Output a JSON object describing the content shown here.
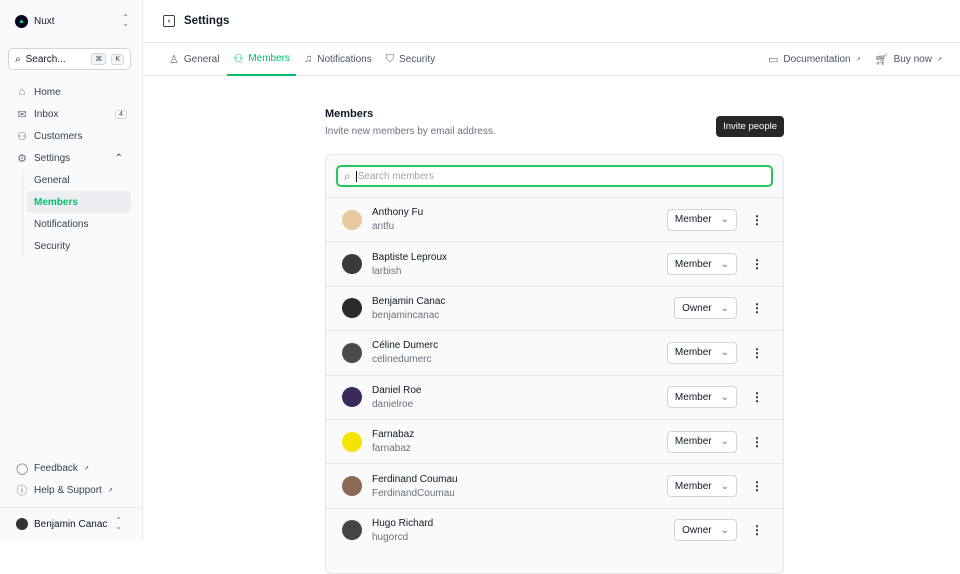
{
  "team": {
    "name": "Nuxt"
  },
  "search": {
    "placeholder": "Search...",
    "kbd1": "⌘",
    "kbd2": "K"
  },
  "nav": [
    {
      "label": "Home",
      "icon": "home-icon",
      "glyph": "⌂"
    },
    {
      "label": "Inbox",
      "icon": "inbox-icon",
      "glyph": "✉",
      "badge": "4"
    },
    {
      "label": "Customers",
      "icon": "users-icon",
      "glyph": "⚇"
    },
    {
      "label": "Settings",
      "icon": "gear-icon",
      "glyph": "⚙"
    }
  ],
  "settings_sub": [
    "General",
    "Members",
    "Notifications",
    "Security"
  ],
  "footer": {
    "feedback": "Feedback",
    "help": "Help & Support",
    "user": "Benjamin Canac"
  },
  "header": {
    "title": "Settings"
  },
  "tabs": [
    {
      "label": "General",
      "glyph": "♙"
    },
    {
      "label": "Members",
      "glyph": "⚇"
    },
    {
      "label": "Notifications",
      "glyph": "🔔"
    },
    {
      "label": "Security",
      "glyph": "⛉"
    }
  ],
  "links": {
    "docs": "Documentation",
    "buy": "Buy now"
  },
  "members_section": {
    "title": "Members",
    "description": "Invite new members by email address.",
    "invite": "Invite people",
    "search_placeholder": "Search members"
  },
  "members": [
    {
      "name": "Anthony Fu",
      "username": "antfu",
      "role": "Member",
      "color": "#e8c9a0"
    },
    {
      "name": "Baptiste Leproux",
      "username": "larbish",
      "role": "Member",
      "color": "#3a3a3a"
    },
    {
      "name": "Benjamin Canac",
      "username": "benjamincanac",
      "role": "Owner",
      "color": "#2a2a2a"
    },
    {
      "name": "Céline Dumerc",
      "username": "celinedumerc",
      "role": "Member",
      "color": "#4a4a4a"
    },
    {
      "name": "Daniel Roe",
      "username": "danielroe",
      "role": "Member",
      "color": "#3b2a5a"
    },
    {
      "name": "Farnabaz",
      "username": "farnabaz",
      "role": "Member",
      "color": "#f5e400"
    },
    {
      "name": "Ferdinand Coumau",
      "username": "FerdinandCoumau",
      "role": "Member",
      "color": "#8a6a55"
    },
    {
      "name": "Hugo Richard",
      "username": "hugorcd",
      "role": "Owner",
      "color": "#444"
    }
  ]
}
